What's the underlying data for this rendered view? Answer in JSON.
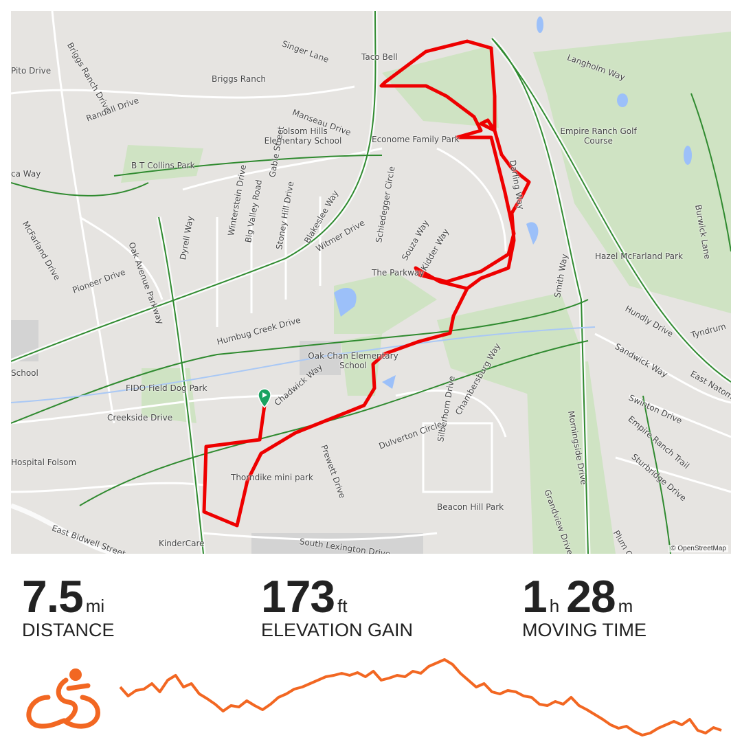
{
  "map": {
    "attribution": "© OpenStreetMap",
    "labels": [
      {
        "text": "Singer Lane"
      },
      {
        "text": "Taco Bell"
      },
      {
        "text": "Briggs Ranch Drive"
      },
      {
        "text": "Briggs Ranch"
      },
      {
        "text": "Randall Drive"
      },
      {
        "text": "Manseau Drive"
      },
      {
        "text": "Folsom Hills Elementary School"
      },
      {
        "text": "B T Collins Park"
      },
      {
        "text": "Econome Family Park"
      },
      {
        "text": "Langholm Way"
      },
      {
        "text": "Empire Ranch Golf Course"
      },
      {
        "text": "McFarland Drive"
      },
      {
        "text": "Gable Street"
      },
      {
        "text": "Winterstein Drive"
      },
      {
        "text": "Big Valley Road"
      },
      {
        "text": "Stoney Hill Drive"
      },
      {
        "text": "Blakeslee Way"
      },
      {
        "text": "Witmer Drive"
      },
      {
        "text": "Schiedegger Circle"
      },
      {
        "text": "Souza Way"
      },
      {
        "text": "Kidder Way"
      },
      {
        "text": "Darling Way"
      },
      {
        "text": "Hazel McFarland Park"
      },
      {
        "text": "Smith Way"
      },
      {
        "text": "Burwick Lane"
      },
      {
        "text": "Pioneer Drive"
      },
      {
        "text": "Dyrell Way"
      },
      {
        "text": "Oak Avenue Parkway"
      },
      {
        "text": "The Parkway"
      },
      {
        "text": "Humbug Creek Drive"
      },
      {
        "text": "Oak Chan Elementary School"
      },
      {
        "text": "Hundly Drive"
      },
      {
        "text": "Sandwick Way"
      },
      {
        "text": "Tyndrum"
      },
      {
        "text": "FIDO Field Dog Park"
      },
      {
        "text": "Chadwick Way"
      },
      {
        "text": "Prewett Drive"
      },
      {
        "text": "Creekside Drive"
      },
      {
        "text": "Dulverton Circle"
      },
      {
        "text": "Chambersburg Way"
      },
      {
        "text": "Silberhorn Drive"
      },
      {
        "text": "Swinton Drive"
      },
      {
        "text": "Empire Ranch Trail"
      },
      {
        "text": "Morningside Drive"
      },
      {
        "text": "Sturbridge Drive"
      },
      {
        "text": "East Natoma"
      },
      {
        "text": "Thorndike mini park"
      },
      {
        "text": "Hospital Folsom"
      },
      {
        "text": "Beacon Hill Park"
      },
      {
        "text": "Grandview Drive"
      },
      {
        "text": "Plum Creek"
      },
      {
        "text": "South Lexington Drive"
      },
      {
        "text": "KinderCare"
      },
      {
        "text": "East Bidwell Street"
      },
      {
        "text": "School"
      },
      {
        "text": "Pito Drive"
      },
      {
        "text": "ca Way"
      }
    ]
  },
  "stats": {
    "distance": {
      "value": "7.5",
      "unit": "mi",
      "label": "DISTANCE"
    },
    "elevation": {
      "value": "173",
      "unit": "ft",
      "label": "ELEVATION GAIN"
    },
    "time": {
      "hours": "1",
      "hours_unit": "h",
      "minutes": "28",
      "minutes_unit": "m",
      "label": "MOVING TIME"
    }
  },
  "activity": {
    "icon": "cyclist-icon"
  },
  "colors": {
    "route": "#ee0000",
    "profile": "#f26722",
    "park": "#cfe3c3",
    "trail": "#2f7d2f",
    "water": "#9cc0f9",
    "start_marker": "#1aa260"
  }
}
